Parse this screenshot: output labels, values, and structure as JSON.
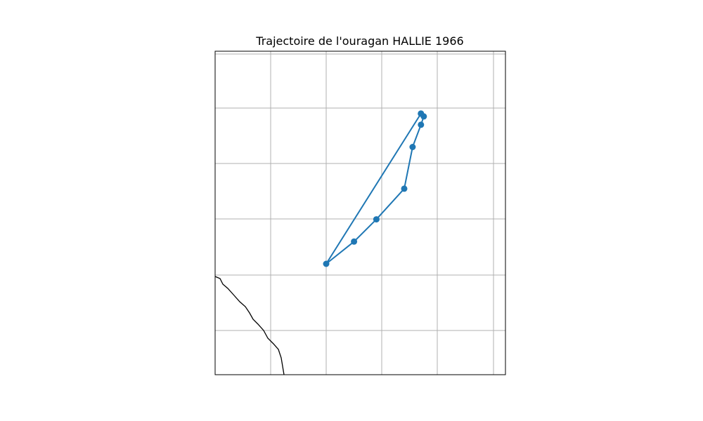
{
  "title": "Trajectoire de l'ouragan HALLIE 1966",
  "colors": {
    "track": "#1f77b4",
    "grid": "#b0b0b0",
    "coastline": "#000000",
    "frame": "#000000",
    "background": "#ffffff"
  },
  "chart_data": {
    "type": "map-track",
    "grid": true,
    "axis_labels_shown": false,
    "track": {
      "marker": "circle",
      "points": [
        {
          "lon": -102.3,
          "lat": 12.9
        },
        {
          "lon": -102.25,
          "lat": 12.85
        },
        {
          "lon": -102.3,
          "lat": 12.7
        },
        {
          "lon": -102.45,
          "lat": 12.3
        },
        {
          "lon": -102.6,
          "lat": 11.55
        },
        {
          "lon": -103.1,
          "lat": 11.0
        },
        {
          "lon": -103.5,
          "lat": 10.6
        },
        {
          "lon": -104.0,
          "lat": 10.2
        },
        {
          "lon": -102.3,
          "lat": 12.9
        }
      ]
    }
  }
}
